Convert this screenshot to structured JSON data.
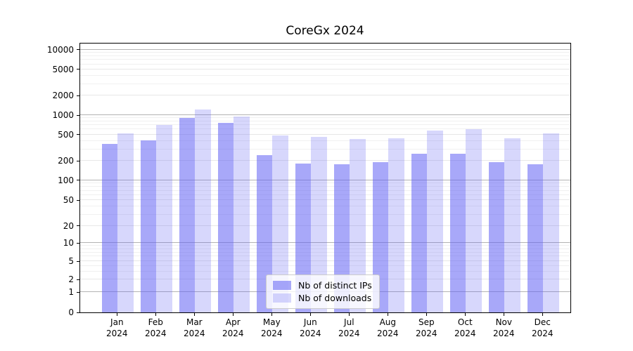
{
  "chart_data": {
    "type": "bar",
    "title": "CoreGx 2024",
    "months": [
      "Jan",
      "Feb",
      "Mar",
      "Apr",
      "May",
      "Jun",
      "Jul",
      "Aug",
      "Sep",
      "Oct",
      "Nov",
      "Dec"
    ],
    "year": "2024",
    "series": [
      {
        "name": "Nb of distinct IPs",
        "color": "rgba(96,96,244,0.55)",
        "values": [
          360,
          410,
          900,
          768,
          244,
          182,
          176,
          193,
          257,
          255,
          189,
          175
        ]
      },
      {
        "name": "Nb of downloads",
        "color": "rgba(96,96,244,0.25)",
        "values": [
          527,
          715,
          1230,
          964,
          487,
          462,
          430,
          434,
          578,
          613,
          440,
          515
        ]
      }
    ],
    "yscale": "symlog",
    "yticks": [
      0,
      1,
      2,
      5,
      10,
      20,
      50,
      100,
      200,
      500,
      1000,
      2000,
      5000,
      10000
    ],
    "ylim": [
      0,
      12000
    ],
    "xlabel": "",
    "ylabel": "",
    "grid": "horizontal major+minor",
    "legend_position": "lower center"
  }
}
